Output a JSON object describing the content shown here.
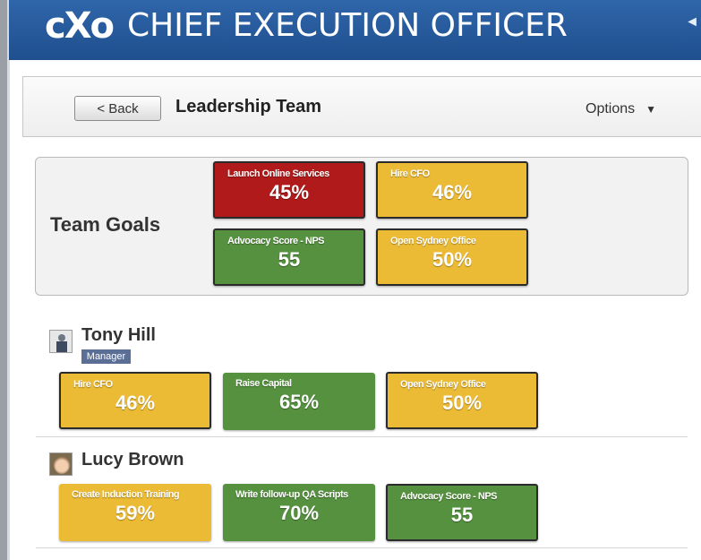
{
  "app": {
    "logo_text": "cXo",
    "title": "CHIEF EXECUTION OFFICER",
    "corner_arrow": "◄"
  },
  "toolbar": {
    "back_label": "< Back",
    "page_title": "Leadership Team",
    "options_label": "Options",
    "options_caret": "▼"
  },
  "team_goals": {
    "label": "Team Goals",
    "goals": [
      {
        "name": "Launch Online Services",
        "value": "45%",
        "status": "red"
      },
      {
        "name": "Hire CFO",
        "value": "46%",
        "status": "yellow"
      },
      {
        "name": "Advocacy Score - NPS",
        "value": "55",
        "status": "green"
      },
      {
        "name": "Open Sydney Office",
        "value": "50%",
        "status": "yellow"
      }
    ]
  },
  "people": [
    {
      "name": "Tony Hill",
      "role": "Manager",
      "avatar_icon": "person-silhouette-icon",
      "goals": [
        {
          "name": "Hire CFO",
          "value": "46%",
          "status": "yellow"
        },
        {
          "name": "Raise Capital",
          "value": "65%",
          "status": "green"
        },
        {
          "name": "Open Sydney Office",
          "value": "50%",
          "status": "yellow"
        }
      ]
    },
    {
      "name": "Lucy Brown",
      "role": "",
      "avatar_icon": "user-photo-icon",
      "goals": [
        {
          "name": "Create Induction Training",
          "value": "59%",
          "status": "yellow"
        },
        {
          "name": "Write follow-up QA Scripts",
          "value": "70%",
          "status": "green"
        },
        {
          "name": "Advocacy Score - NPS",
          "value": "55",
          "status": "green"
        }
      ]
    }
  ],
  "colors": {
    "banner": "#2a5d9f",
    "red": "#b01a1a",
    "yellow": "#ecbb35",
    "green": "#55913f"
  }
}
